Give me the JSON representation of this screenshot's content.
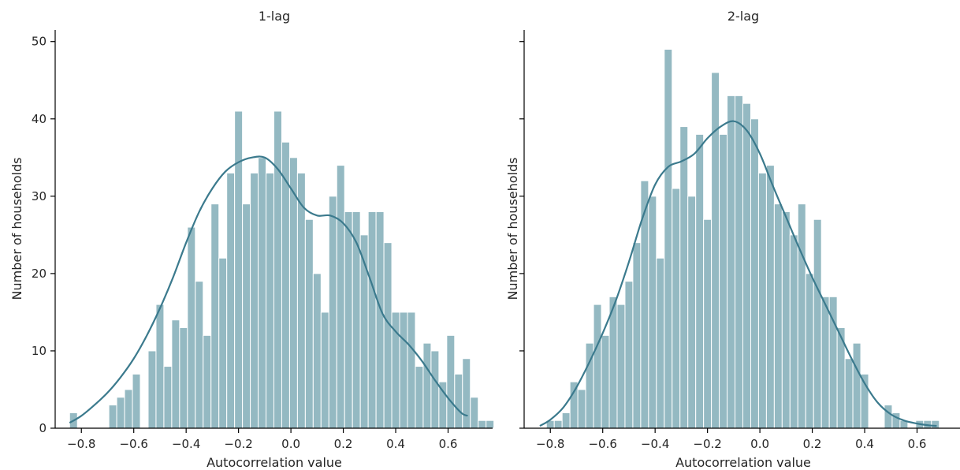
{
  "colors": {
    "bar": "#94b9c2",
    "kde": "#3b7a8d"
  },
  "chart_data": [
    {
      "type": "bar",
      "title": "1-lag",
      "xlabel": "Autocorrelation value",
      "ylabel": "Number of households",
      "xlim": [
        -0.9,
        0.77
      ],
      "ylim": [
        0,
        51.5
      ],
      "xticks": [
        -0.8,
        -0.6,
        -0.4,
        -0.2,
        0.0,
        0.2,
        0.4,
        0.6
      ],
      "xtick_labels": [
        "−0.8",
        "−0.6",
        "−0.4",
        "−0.2",
        "0.0",
        "0.2",
        "0.4",
        "0.6"
      ],
      "yticks": [
        0,
        10,
        20,
        30,
        40,
        50
      ],
      "ytick_labels": [
        "0",
        "10",
        "20",
        "30",
        "40",
        "50"
      ],
      "bins": {
        "start": -0.845,
        "width": 0.03
      },
      "values": [
        2,
        0,
        0,
        0,
        0,
        3,
        4,
        5,
        7,
        0,
        10,
        16,
        8,
        14,
        13,
        26,
        19,
        12,
        29,
        22,
        33,
        41,
        29,
        33,
        35,
        33,
        41,
        37,
        35,
        33,
        27,
        20,
        15,
        30,
        34,
        28,
        28,
        25,
        28,
        28,
        24,
        15,
        15,
        15,
        8,
        11,
        10,
        6,
        12,
        7,
        9,
        4,
        1,
        1
      ],
      "kde": {
        "x": [
          -0.845,
          -0.8,
          -0.75,
          -0.7,
          -0.65,
          -0.6,
          -0.55,
          -0.5,
          -0.45,
          -0.4,
          -0.35,
          -0.3,
          -0.25,
          -0.2,
          -0.15,
          -0.1,
          -0.05,
          0.0,
          0.05,
          0.1,
          0.15,
          0.2,
          0.25,
          0.3,
          0.35,
          0.4,
          0.45,
          0.5,
          0.55,
          0.6,
          0.65,
          0.675
        ],
        "y": [
          0.7,
          1.6,
          3.0,
          4.6,
          6.6,
          9.0,
          12.0,
          15.5,
          19.5,
          24.0,
          28.0,
          31.0,
          33.2,
          34.4,
          35.0,
          35.0,
          33.5,
          31.0,
          28.5,
          27.5,
          27.5,
          26.5,
          24.0,
          19.5,
          14.8,
          12.5,
          10.8,
          8.7,
          6.2,
          3.9,
          2.0,
          1.6
        ]
      }
    },
    {
      "type": "bar",
      "title": "2-lag",
      "xlabel": "Autocorrelation value",
      "ylabel": "Number of households",
      "xlim": [
        -0.9,
        0.77
      ],
      "ylim": [
        0,
        51.5
      ],
      "xticks": [
        -0.8,
        -0.6,
        -0.4,
        -0.2,
        0.0,
        0.2,
        0.4,
        0.6
      ],
      "xtick_labels": [
        "−0.8",
        "−0.6",
        "−0.4",
        "−0.2",
        "0.0",
        "0.2",
        "0.4",
        "0.6"
      ],
      "yticks": [
        0,
        10,
        20,
        30,
        40,
        50
      ],
      "ytick_labels": [
        "",
        "",
        "",
        "",
        "",
        ""
      ],
      "bins": {
        "start": -0.815,
        "width": 0.03
      },
      "values": [
        1,
        1,
        2,
        6,
        5,
        11,
        16,
        12,
        17,
        16,
        19,
        24,
        32,
        30,
        22,
        49,
        31,
        39,
        30,
        38,
        27,
        46,
        38,
        43,
        43,
        42,
        40,
        33,
        34,
        29,
        28,
        25,
        29,
        20,
        27,
        17,
        17,
        13,
        9,
        11,
        7,
        0,
        0,
        3,
        2,
        1,
        0,
        1,
        1,
        1
      ],
      "kde": {
        "x": [
          -0.84,
          -0.8,
          -0.75,
          -0.7,
          -0.65,
          -0.6,
          -0.55,
          -0.5,
          -0.45,
          -0.4,
          -0.35,
          -0.3,
          -0.25,
          -0.2,
          -0.15,
          -0.1,
          -0.05,
          0.0,
          0.05,
          0.1,
          0.15,
          0.2,
          0.25,
          0.3,
          0.35,
          0.4,
          0.45,
          0.5,
          0.55,
          0.6,
          0.65,
          0.675
        ],
        "y": [
          0.3,
          1.1,
          2.7,
          5.3,
          8.6,
          12.3,
          16.5,
          21.5,
          27.0,
          31.5,
          33.8,
          34.5,
          35.5,
          37.5,
          39.0,
          39.7,
          38.5,
          35.5,
          31.3,
          27.3,
          23.3,
          19.5,
          16.0,
          12.5,
          9.0,
          5.8,
          3.3,
          1.8,
          1.0,
          0.6,
          0.35,
          0.3
        ]
      }
    }
  ]
}
